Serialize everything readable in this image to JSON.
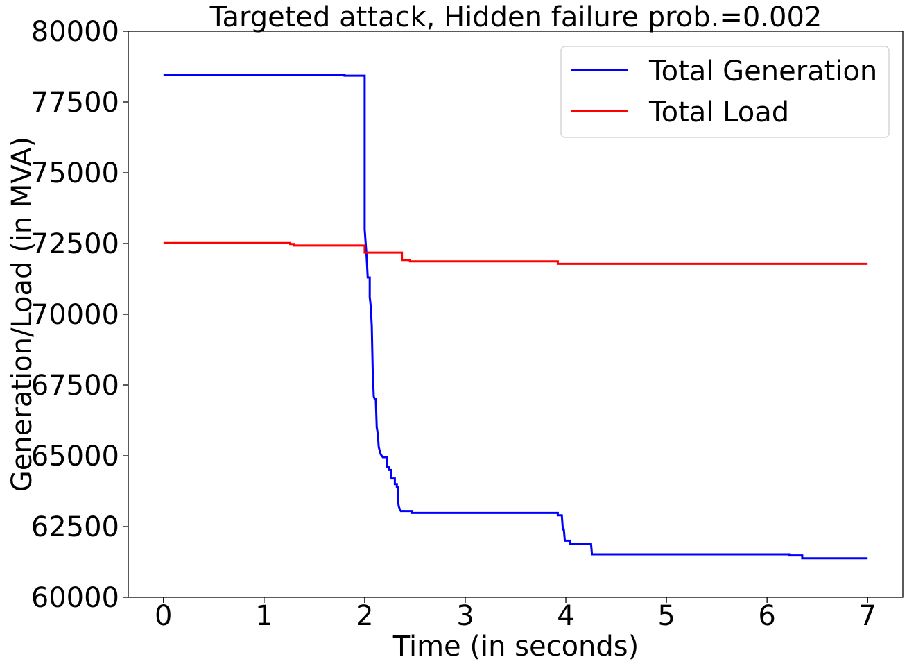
{
  "chart_data": {
    "type": "line",
    "title": "Targeted attack, Hidden failure prob.=0.002",
    "xlabel": "Time (in seconds)",
    "ylabel": "Generation/Load (in MVA)",
    "xlim": [
      -0.35,
      7.35
    ],
    "ylim": [
      60000,
      80000
    ],
    "xticks": [
      0,
      1,
      2,
      3,
      4,
      5,
      6,
      7
    ],
    "yticks": [
      60000,
      62500,
      65000,
      67500,
      70000,
      72500,
      75000,
      77500,
      80000
    ],
    "grid": false,
    "legend_position": "top-right",
    "series": [
      {
        "name": "Total Generation",
        "color": "#0000ff",
        "points": [
          [
            0,
            78450
          ],
          [
            1.8,
            78450
          ],
          [
            1.8,
            78430
          ],
          [
            2.0,
            78430
          ],
          [
            2.0,
            73000
          ],
          [
            2.02,
            72000
          ],
          [
            2.03,
            71300
          ],
          [
            2.05,
            71300
          ],
          [
            2.05,
            70600
          ],
          [
            2.06,
            70300
          ],
          [
            2.07,
            69600
          ],
          [
            2.08,
            68000
          ],
          [
            2.09,
            67100
          ],
          [
            2.1,
            67000
          ],
          [
            2.11,
            67000
          ],
          [
            2.12,
            66000
          ],
          [
            2.13,
            65800
          ],
          [
            2.14,
            65300
          ],
          [
            2.16,
            65050
          ],
          [
            2.18,
            64950
          ],
          [
            2.2,
            64950
          ],
          [
            2.22,
            64950
          ],
          [
            2.22,
            64600
          ],
          [
            2.24,
            64600
          ],
          [
            2.24,
            64500
          ],
          [
            2.26,
            64500
          ],
          [
            2.26,
            64200
          ],
          [
            2.3,
            64200
          ],
          [
            2.3,
            64000
          ],
          [
            2.32,
            64000
          ],
          [
            2.32,
            63900
          ],
          [
            2.33,
            63900
          ],
          [
            2.33,
            63400
          ],
          [
            2.34,
            63200
          ],
          [
            2.35,
            63100
          ],
          [
            2.36,
            63050
          ],
          [
            2.47,
            63050
          ],
          [
            2.47,
            62980
          ],
          [
            3.92,
            62980
          ],
          [
            3.92,
            62900
          ],
          [
            3.96,
            62900
          ],
          [
            3.97,
            62400
          ],
          [
            3.98,
            62400
          ],
          [
            3.99,
            62000
          ],
          [
            4.04,
            62000
          ],
          [
            4.04,
            61900
          ],
          [
            4.25,
            61900
          ],
          [
            4.26,
            61520
          ],
          [
            6.22,
            61520
          ],
          [
            6.22,
            61480
          ],
          [
            6.35,
            61480
          ],
          [
            6.35,
            61380
          ],
          [
            7.0,
            61380
          ]
        ]
      },
      {
        "name": "Total Load",
        "color": "#ff0000",
        "points": [
          [
            0,
            72520
          ],
          [
            1.26,
            72520
          ],
          [
            1.26,
            72480
          ],
          [
            1.3,
            72480
          ],
          [
            1.3,
            72430
          ],
          [
            2.0,
            72430
          ],
          [
            2.0,
            72180
          ],
          [
            2.37,
            72180
          ],
          [
            2.37,
            71920
          ],
          [
            2.45,
            71920
          ],
          [
            2.45,
            71870
          ],
          [
            3.92,
            71870
          ],
          [
            3.92,
            71780
          ],
          [
            7.0,
            71780
          ]
        ]
      }
    ]
  }
}
